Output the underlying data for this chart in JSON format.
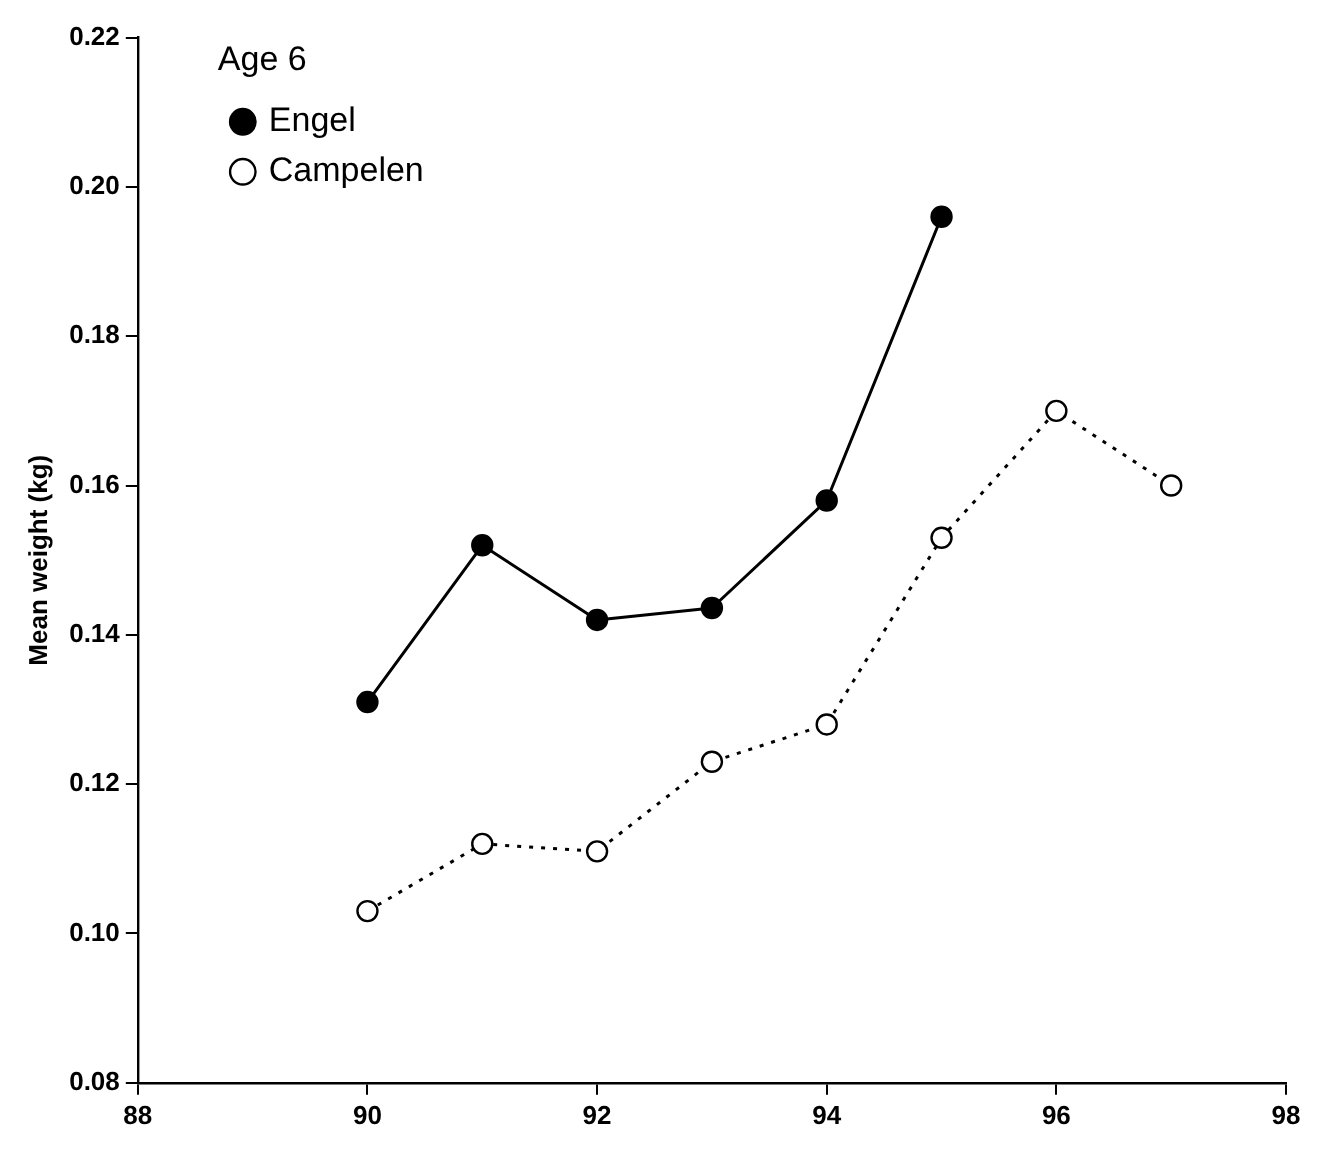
{
  "chart_data": {
    "type": "line",
    "ylabel": "Mean weight (kg)",
    "legend_title": "Age 6",
    "xlim": [
      88,
      98
    ],
    "xticks": [
      88,
      90,
      92,
      94,
      96,
      98
    ],
    "ylim": [
      0.08,
      0.22
    ],
    "yticks": [
      {
        "value": 0.08,
        "label": "0.08"
      },
      {
        "value": 0.1,
        "label": "0.10"
      },
      {
        "value": 0.12,
        "label": "0.12"
      },
      {
        "value": 0.14,
        "label": "0.14"
      },
      {
        "value": 0.16,
        "label": "0.16"
      },
      {
        "value": 0.18,
        "label": "0.18"
      },
      {
        "value": 0.2,
        "label": "0.20"
      },
      {
        "value": 0.22,
        "label": "0.22"
      }
    ],
    "grid": false,
    "legend": "top left",
    "marker": "circle",
    "series": [
      {
        "name": "Engel",
        "color": "#000000",
        "line_style": "solid",
        "x": [
          90,
          91,
          92,
          93,
          94,
          95
        ],
        "values": [
          0.131,
          0.152,
          0.142,
          0.1436,
          0.158,
          0.196
        ]
      },
      {
        "name": "Campelen",
        "color": "#000000",
        "line_style": "dotted",
        "x": [
          90,
          91,
          92,
          93,
          94,
          95,
          96,
          97
        ],
        "values": [
          0.103,
          0.112,
          0.111,
          0.123,
          0.128,
          0.153,
          0.17,
          0.16
        ]
      }
    ]
  }
}
